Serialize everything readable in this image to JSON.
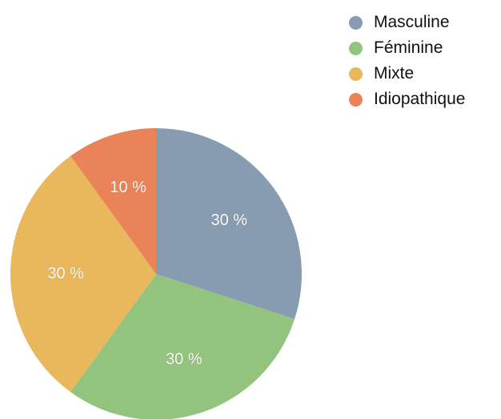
{
  "chart_data": {
    "type": "pie",
    "title": "",
    "categories": [
      "Masculine",
      "Féminine",
      "Mixte",
      "Idiopathique"
    ],
    "values": [
      30,
      30,
      30,
      10
    ],
    "value_labels": [
      "30 %",
      "30 %",
      "30 %",
      "10 %"
    ],
    "colors": [
      "#879cb1",
      "#93c47d",
      "#e9b85c",
      "#ea8458"
    ],
    "start": "12 o'clock",
    "direction": "clockwise",
    "legend": {
      "placement": "top-right",
      "entries": [
        "Masculine",
        "Féminine",
        "Mixte",
        "Idiopathique"
      ]
    }
  }
}
